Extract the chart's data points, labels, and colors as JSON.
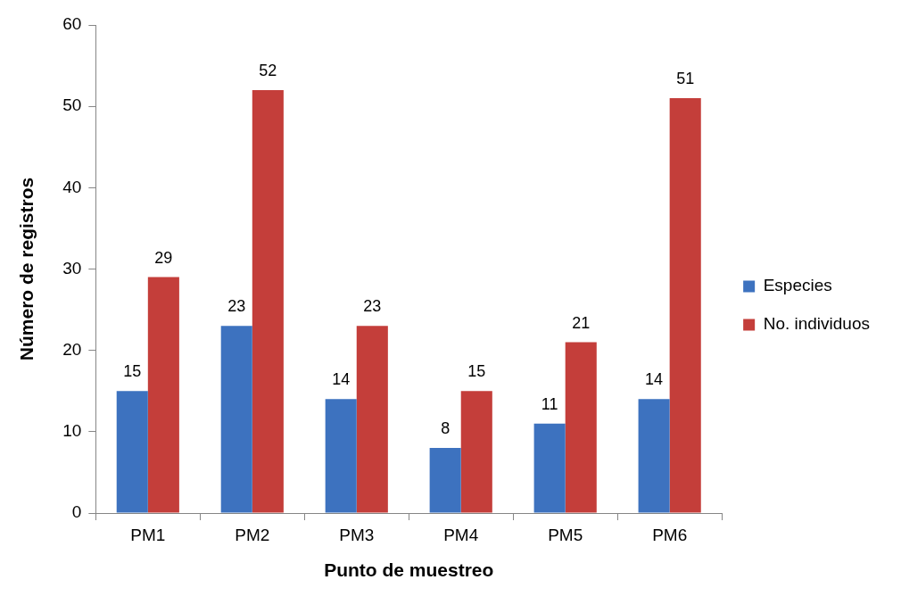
{
  "chart_data": {
    "type": "bar",
    "xlabel": "Punto de muestreo",
    "ylabel": "Número de registros",
    "categories": [
      "PM1",
      "PM2",
      "PM3",
      "PM4",
      "PM5",
      "PM6"
    ],
    "series": [
      {
        "name": "Especies",
        "color": "#3d72bf",
        "values": [
          15,
          23,
          14,
          8,
          11,
          14
        ]
      },
      {
        "name": "No. individuos",
        "color": "#c43e3a",
        "values": [
          29,
          52,
          23,
          15,
          21,
          51
        ]
      }
    ],
    "ylim": [
      0,
      60
    ],
    "yticks": [
      0,
      10,
      20,
      30,
      40,
      50,
      60
    ],
    "grid": false,
    "legend": "right",
    "data_labels": true
  }
}
